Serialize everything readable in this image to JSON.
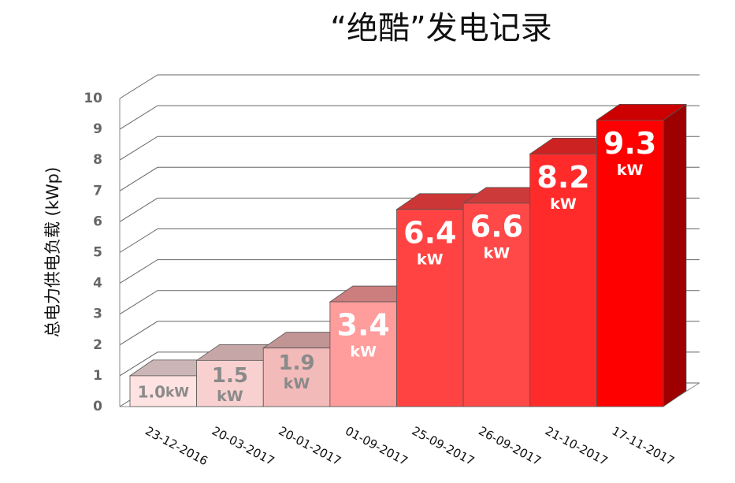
{
  "chart_data": {
    "type": "bar3d",
    "title": "“绝酷”发电记录",
    "y_label": "总电力供电负载 (kWp)",
    "categories": [
      "23-12-2016",
      "20-03-2017",
      "20-01-2017",
      "01-09-2017",
      "25-09-2017",
      "26-09-2017",
      "21-10-2017",
      "17-11-2017"
    ],
    "values": [
      1.0,
      1.5,
      1.9,
      3.4,
      6.4,
      6.6,
      8.2,
      9.3
    ],
    "value_labels": [
      "1.0",
      "1.5",
      "1.9",
      "3.4",
      "6.4",
      "6.6",
      "8.2",
      "9.3"
    ],
    "value_unit": "kW",
    "colors": [
      "#ffe2e2",
      "#f8d0d0",
      "#f3baba",
      "#ff9c9c",
      "#ff4343",
      "#ff4848",
      "#ff2b2b",
      "#ff0000"
    ],
    "label_colors": [
      "#8a8a8a",
      "#8a8a8a",
      "#8a8a8a",
      "#ffffff",
      "#ffffff",
      "#ffffff",
      "#ffffff",
      "#ffffff"
    ],
    "ylim": [
      0,
      10
    ],
    "yticks": [
      0,
      1,
      2,
      3,
      4,
      5,
      6,
      7,
      8,
      9,
      10
    ],
    "grid": true
  }
}
